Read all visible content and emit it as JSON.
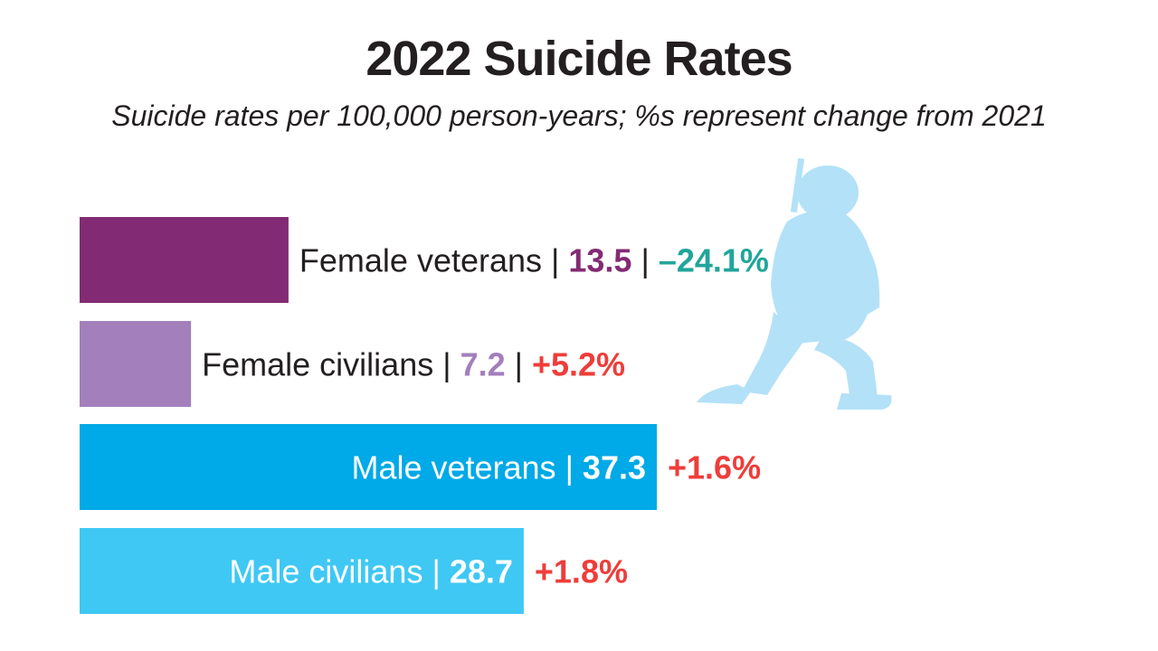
{
  "chart_data": {
    "type": "bar",
    "orientation": "horizontal",
    "title": "2022 Suicide Rates",
    "subtitle": "Suicide rates per 100,000 person-years; %s represent change from 2021",
    "xlim": [
      0,
      40
    ],
    "grid": false,
    "legend": "none",
    "bars": [
      {
        "category": "Female veterans",
        "value": 13.5,
        "value_label": "13.5",
        "change": "–24.1%",
        "color": "#822b74",
        "value_color": "#822b74",
        "change_color": "#21a59b",
        "label_inside": false
      },
      {
        "category": "Female civilians",
        "value": 7.2,
        "value_label": "7.2",
        "change": "+5.2%",
        "color": "#a37fbb",
        "value_color": "#a37fbb",
        "change_color": "#ee3d3a",
        "label_inside": false
      },
      {
        "category": "Male veterans",
        "value": 37.3,
        "value_label": "37.3",
        "change": "+1.6%",
        "color": "#00a9e7",
        "value_color": "#ffffff",
        "change_color": "#ee3d3a",
        "label_inside": true
      },
      {
        "category": "Male civilians",
        "value": 28.7,
        "value_label": "28.7",
        "change": "+1.8%",
        "color": "#3fc8f4",
        "value_color": "#ffffff",
        "change_color": "#ee3d3a",
        "label_inside": true
      }
    ]
  },
  "icons": {
    "illustration": "kneeling-soldier-icon",
    "color": "#b3e1f8"
  }
}
